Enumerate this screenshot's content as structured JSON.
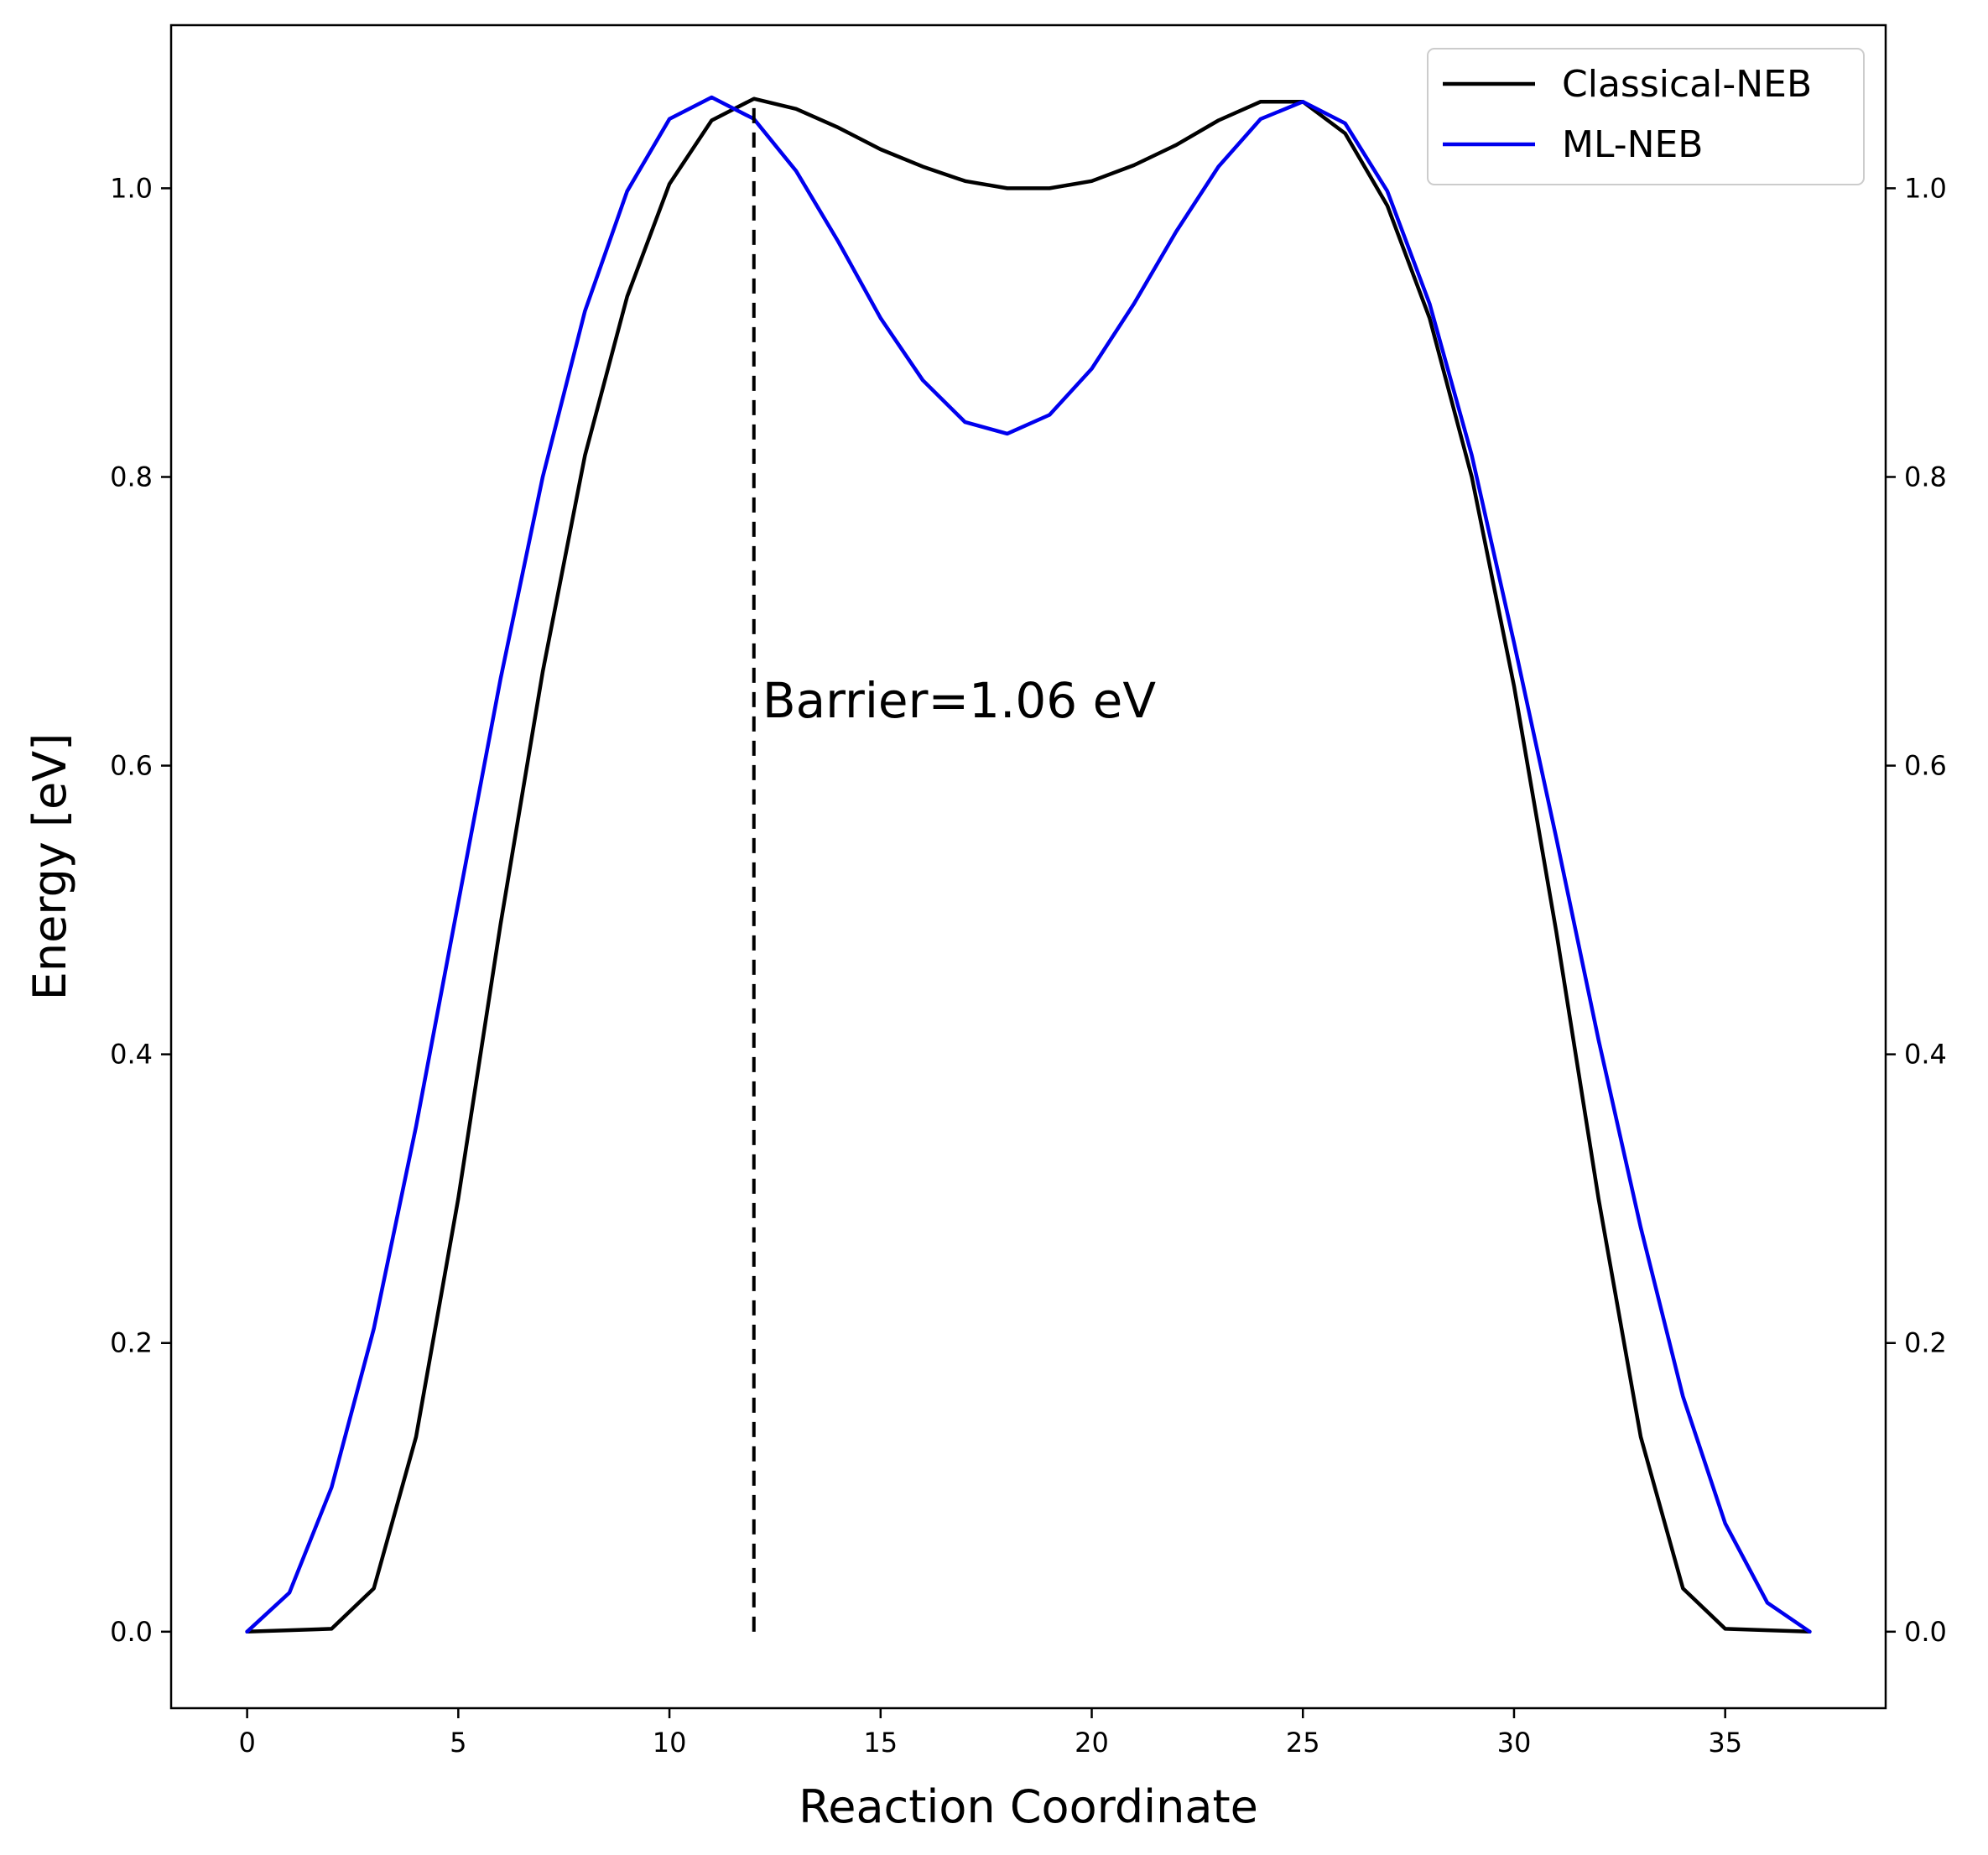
{
  "chart_data": {
    "type": "line",
    "title": "",
    "xlabel": "Reaction Coordinate",
    "ylabel": "Energy [eV]",
    "xlim": [
      -1.8,
      38.8
    ],
    "ylim": [
      -0.053,
      1.113
    ],
    "xticks": [
      0,
      5,
      10,
      15,
      20,
      25,
      30,
      35
    ],
    "yticks": [
      0.0,
      0.2,
      0.4,
      0.6,
      0.8,
      1.0
    ],
    "ytick_labels": [
      "0.0",
      "0.2",
      "0.4",
      "0.6",
      "0.8",
      "1.0"
    ],
    "right_axis": true,
    "legend_position": "top-right",
    "series": [
      {
        "name": "Classical-NEB",
        "color": "#000000",
        "x": [
          0,
          1,
          2,
          3,
          4,
          5,
          6,
          7,
          8,
          9,
          10,
          11,
          12,
          13,
          14,
          15,
          16,
          17,
          18,
          19,
          20,
          21,
          22,
          23,
          24,
          25,
          26,
          27,
          28,
          29,
          30,
          31,
          32,
          33,
          34,
          35,
          36,
          37
        ],
        "values": [
          0.0,
          0.001,
          0.002,
          0.03,
          0.135,
          0.3,
          0.49,
          0.665,
          0.815,
          0.925,
          1.003,
          1.047,
          1.062,
          1.055,
          1.042,
          1.027,
          1.015,
          1.005,
          1.0,
          1.0,
          1.005,
          1.016,
          1.03,
          1.047,
          1.06,
          1.06,
          1.038,
          0.988,
          0.91,
          0.8,
          0.655,
          0.485,
          0.3,
          0.135,
          0.03,
          0.002,
          0.001,
          0.0
        ]
      },
      {
        "name": "ML-NEB",
        "color": "#0000ee",
        "x": [
          0,
          1,
          2,
          3,
          4,
          5,
          6,
          7,
          8,
          9,
          10,
          11,
          12,
          13,
          14,
          15,
          16,
          17,
          18,
          19,
          20,
          21,
          22,
          23,
          24,
          25,
          26,
          27,
          28,
          29,
          30,
          31,
          32,
          33,
          34,
          35,
          36,
          37
        ],
        "values": [
          0.0,
          0.027,
          0.1,
          0.21,
          0.35,
          0.505,
          0.66,
          0.8,
          0.915,
          0.998,
          1.048,
          1.063,
          1.048,
          1.012,
          0.963,
          0.91,
          0.867,
          0.838,
          0.83,
          0.843,
          0.875,
          0.92,
          0.97,
          1.015,
          1.048,
          1.06,
          1.045,
          0.998,
          0.92,
          0.815,
          0.685,
          0.55,
          0.41,
          0.28,
          0.163,
          0.075,
          0.02,
          0.0
        ]
      }
    ],
    "annotations": [
      {
        "type": "vline",
        "x": 12,
        "y0": 0.0,
        "y1": 1.06,
        "style": "dashed",
        "color": "#000000"
      },
      {
        "type": "text",
        "text": "Barrier=1.06 eV",
        "x": 12.2,
        "y": 0.645
      }
    ]
  }
}
